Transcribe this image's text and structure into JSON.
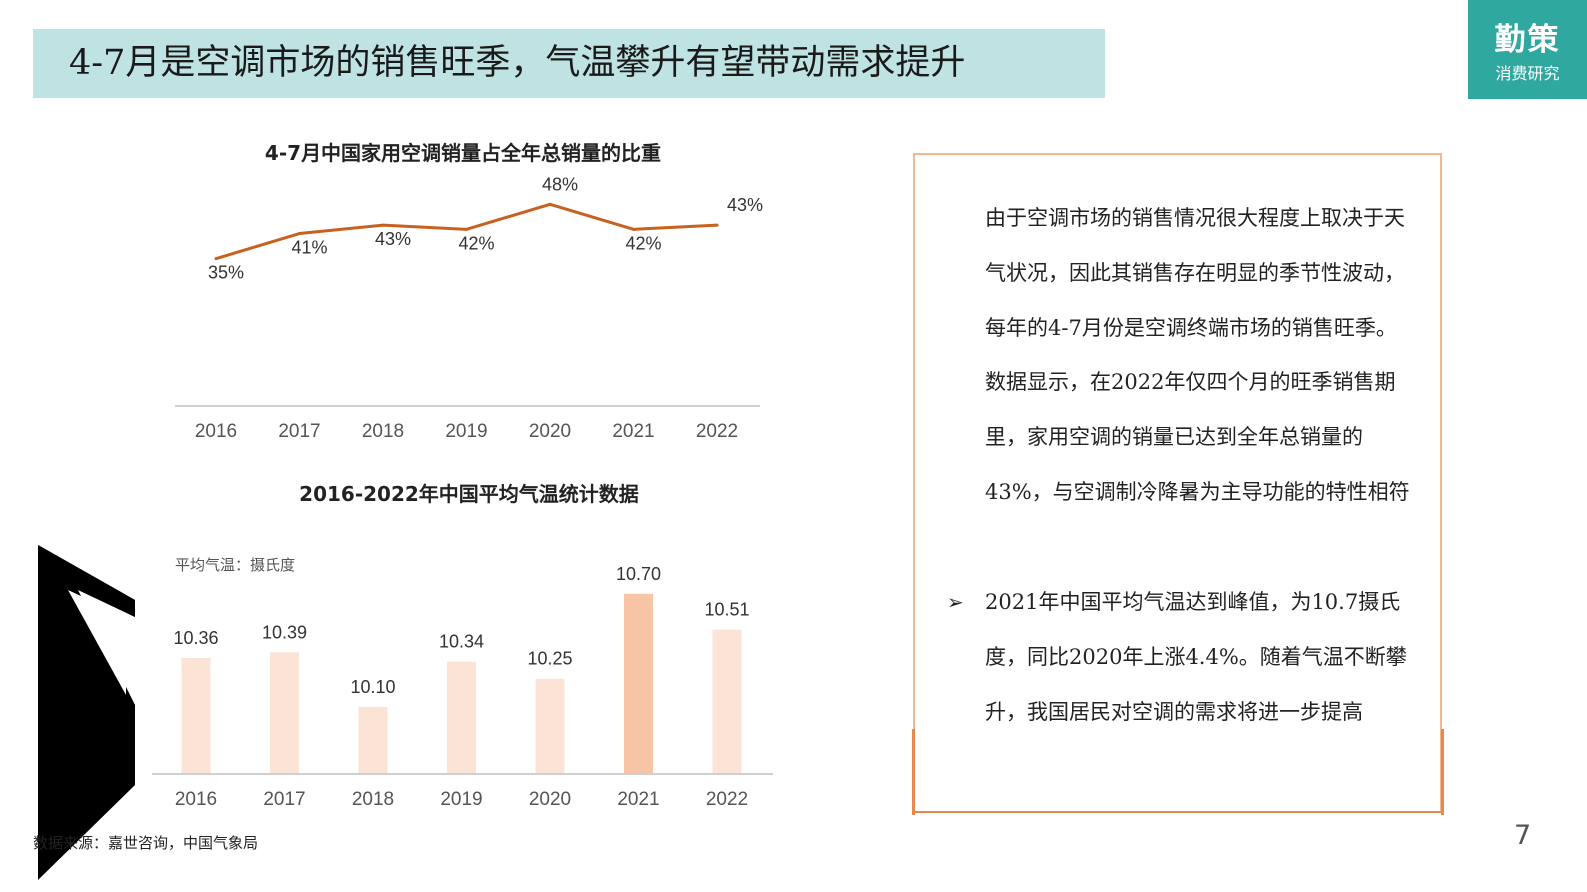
{
  "title": "4-7月是空调市场的销售旺季，气温攀升有望带动需求提升",
  "logo": {
    "main": "勤策",
    "sub": "消费研究"
  },
  "chart_data": [
    {
      "type": "line",
      "title": "4-7月中国家用空调销量占全年总销量的比重",
      "categories": [
        "2016",
        "2017",
        "2018",
        "2019",
        "2020",
        "2021",
        "2022"
      ],
      "values": [
        35,
        41,
        43,
        42,
        48,
        42,
        43
      ],
      "labels": [
        "35%",
        "41%",
        "43%",
        "42%",
        "48%",
        "42%",
        "43%"
      ],
      "ylim": [
        0,
        55
      ],
      "color": "#c8601e",
      "grid": false,
      "legend": "none"
    },
    {
      "type": "bar",
      "title": "2016-2022年中国平均气温统计数据",
      "unit_label": "平均气温：摄氏度",
      "categories": [
        "2016",
        "2017",
        "2018",
        "2019",
        "2020",
        "2021",
        "2022"
      ],
      "values": [
        10.36,
        10.39,
        10.1,
        10.34,
        10.25,
        10.7,
        10.51
      ],
      "labels": [
        "10.36",
        "10.39",
        "10.10",
        "10.34",
        "10.25",
        "10.70",
        "10.51"
      ],
      "ylim": [
        9.75,
        10.8
      ],
      "bar_color": "#fbe3d6",
      "highlight_color": "#f7c4a5",
      "highlight_index": 5,
      "grid": false,
      "legend": "none"
    }
  ],
  "panel": {
    "para1": "由于空调市场的销售情况很大程度上取决于天气状况，因此其销售存在明显的季节性波动，每年的4-7月份是空调终端市场的销售旺季。数据显示，在2022年仅四个月的旺季销售期里，家用空调的销量已达到全年总销量的43%，与空调制冷降暑为主导功能的特性相符",
    "bullet_marker": "➢",
    "para2": "2021年中国平均气温达到峰值，为10.7摄氏度，同比2020年上涨4.4%。随着气温不断攀升，我国居民对空调的需求将进一步提高"
  },
  "source": "数据来源：嘉世咨询，中国气象局",
  "page_number": "7"
}
